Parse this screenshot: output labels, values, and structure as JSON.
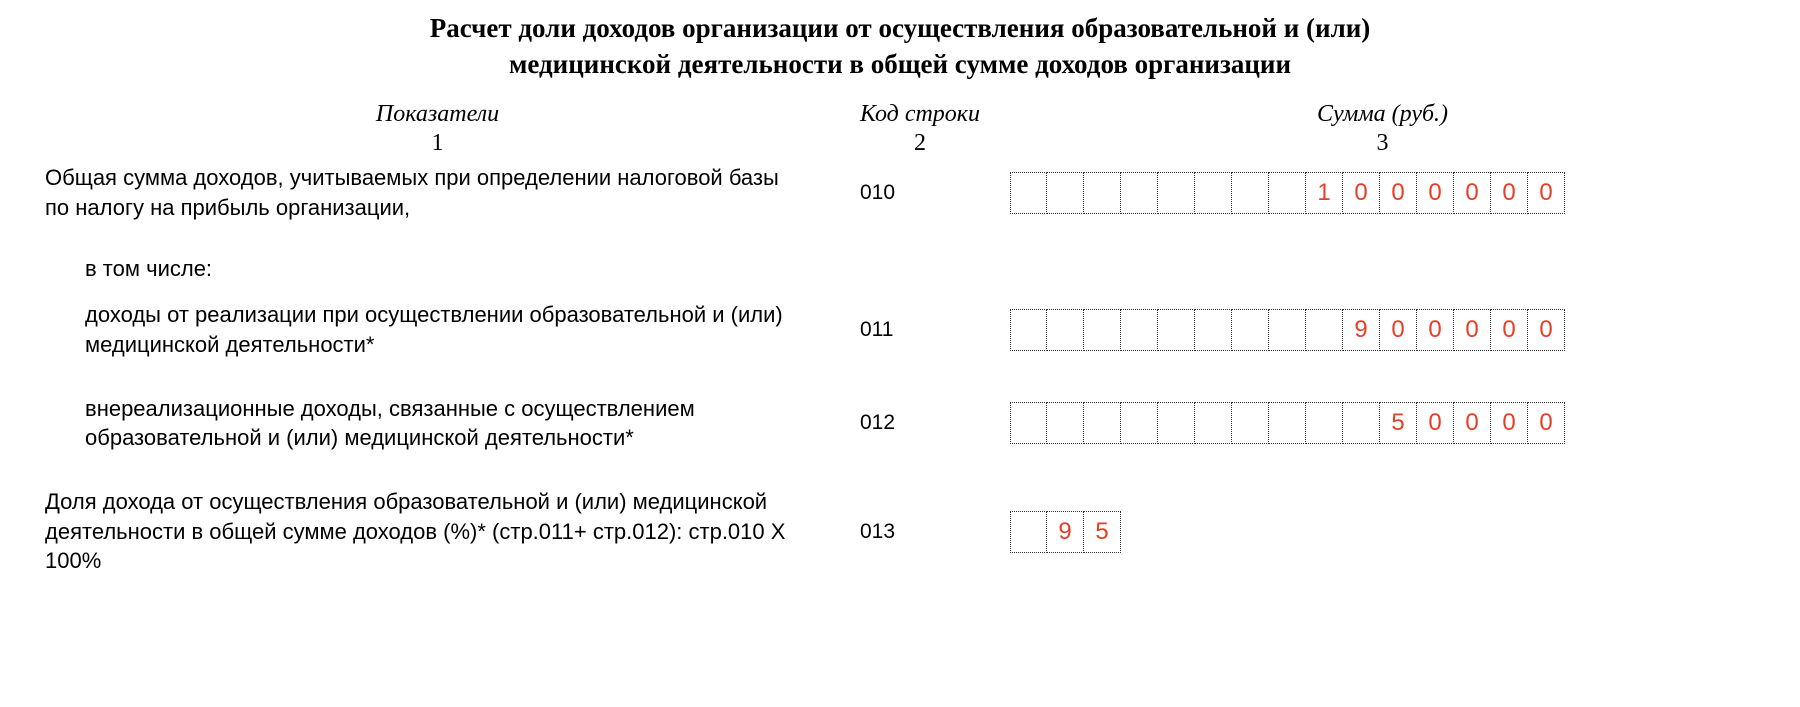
{
  "title_line1": "Расчет доли доходов организации от осуществления образовательной и (или)",
  "title_line2": "медицинской деятельности в общей сумме доходов организации",
  "headers": {
    "col1": "Показатели",
    "col2": "Код строки",
    "col3": "Сумма (руб.)",
    "num1": "1",
    "num2": "2",
    "num3": "3"
  },
  "cell_count_long": 15,
  "cell_count_short": 3,
  "value_color": "#e83e28",
  "border_color": "#333333",
  "rows": [
    {
      "desc": "Общая сумма доходов, учитываемых при определении налоговой базы по налогу  на прибыль организации,",
      "code": "010",
      "cells": [
        "",
        "",
        "",
        "",
        "",
        "",
        "",
        "",
        "1",
        "0",
        "0",
        "0",
        "0",
        "0",
        "0"
      ],
      "indent": false
    },
    {
      "subtext": "в том числе:"
    },
    {
      "desc": "доходы от реализации при осуществлении образовательной и (или) медицинской деятельности*",
      "code": "011",
      "cells": [
        "",
        "",
        "",
        "",
        "",
        "",
        "",
        "",
        "",
        "9",
        "0",
        "0",
        "0",
        "0",
        "0"
      ],
      "indent": true
    },
    {
      "desc": "внереализационные доходы, связанные  с осуществлением образовательной  и (или) медицинской деятельности*",
      "code": "012",
      "cells": [
        "",
        "",
        "",
        "",
        "",
        "",
        "",
        "",
        "",
        "",
        "5",
        "0",
        "0",
        "0",
        "0"
      ],
      "indent": true
    },
    {
      "desc": "Доля дохода от осуществления образовательной и (или) медицинской деятельности в общей сумме доходов (%)* (стр.011+ стр.012): стр.010 Х 100%",
      "code": "013",
      "cells": [
        "",
        "9",
        "5"
      ],
      "indent": false
    }
  ]
}
